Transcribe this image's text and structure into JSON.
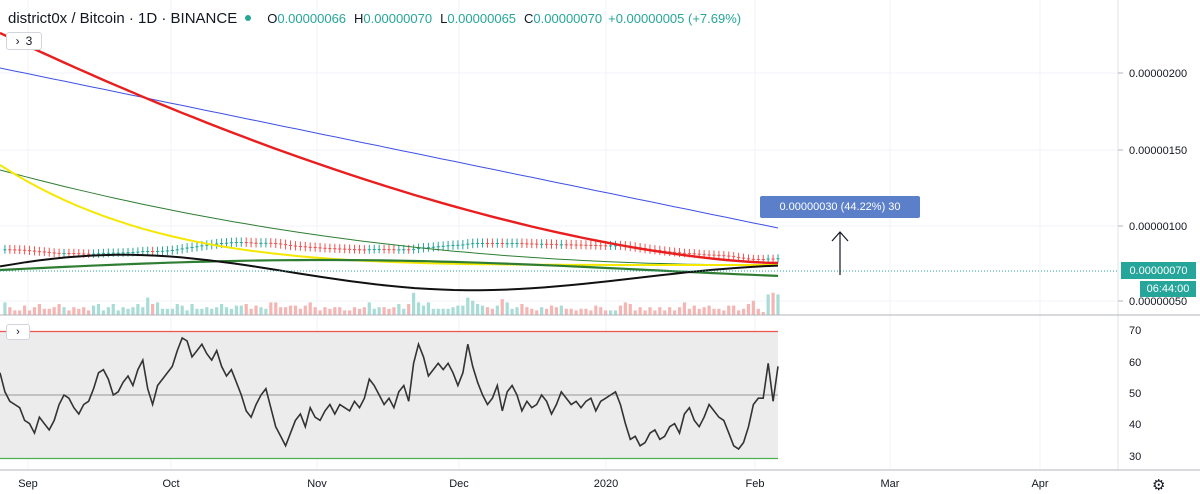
{
  "header": {
    "symbol": "district0x / Bitcoin · 1D · BINANCE",
    "open_key": "O",
    "open": "0.00000066",
    "high_key": "H",
    "high": "0.00000070",
    "low_key": "L",
    "low": "0.00000065",
    "close_key": "C",
    "close": "0.00000070",
    "change": "+0.00000005 (+7.69%)"
  },
  "indicator_toggle": {
    "icon": "chevron-right-icon",
    "count": "3"
  },
  "rsi_toggle": {
    "icon": "chevron-right-icon"
  },
  "price_axis": [
    "0.00000200",
    "0.00000150",
    "0.00000100",
    "0.00000050"
  ],
  "rsi_axis": [
    "70",
    "60",
    "50",
    "40",
    "30"
  ],
  "time_axis": [
    "Sep",
    "Oct",
    "Nov",
    "Dec",
    "2020",
    "Feb",
    "Mar",
    "Apr"
  ],
  "last_price": "0.00000070",
  "countdown": "06:44:00",
  "measure_label": "0.00000030 (44.22%) 30",
  "settings_icon": "gear-icon",
  "colors": {
    "up": "#26a69a",
    "down": "#ef5350",
    "ma_red": "#e91e1e",
    "ma_blue": "#3f51e6",
    "ma_yellow": "#f5e800",
    "ma_green": "#2e7d32",
    "ma_black": "#111111",
    "rsi_line": "#333333",
    "rsi_band": "#ececec",
    "rsi_upper": "#ef5350",
    "rsi_lower": "#4caf50"
  },
  "chart_data": {
    "type": "line",
    "price_ylim": [
      4e-07,
      2.4e-06
    ],
    "rsi_ylim": [
      27,
      73
    ],
    "rsi_levels": [
      70,
      30
    ],
    "rsi": [
      57,
      51,
      48,
      47,
      46,
      42,
      41,
      38,
      43,
      41,
      39,
      42,
      47,
      50,
      49,
      46,
      44,
      47,
      48,
      52,
      57,
      58,
      55,
      50,
      51,
      54,
      56,
      53,
      58,
      61,
      52,
      47,
      53,
      55,
      57,
      59,
      64,
      68,
      67,
      62,
      64,
      66,
      63,
      61,
      64,
      59,
      56,
      58,
      54,
      50,
      45,
      43,
      47,
      50,
      52,
      46,
      40,
      37,
      34,
      38,
      42,
      44,
      40,
      46,
      43,
      42,
      45,
      47,
      44,
      47,
      46,
      45,
      48,
      46,
      49,
      55,
      53,
      50,
      47,
      49,
      46,
      51,
      53,
      48,
      60,
      66,
      62,
      56,
      58,
      60,
      58,
      60,
      57,
      53,
      57,
      66,
      59,
      54,
      50,
      47,
      49,
      53,
      45,
      51,
      53,
      50,
      45,
      48,
      46,
      47,
      50,
      48,
      44,
      47,
      51,
      49,
      47,
      48,
      46,
      48,
      49,
      45,
      48,
      49,
      50,
      51,
      47,
      41,
      36,
      37,
      34,
      35,
      38,
      39,
      36,
      37,
      40,
      41,
      38,
      44,
      46,
      42,
      40,
      43,
      47,
      45,
      43,
      42,
      38,
      34,
      33,
      35,
      40,
      47,
      49,
      49,
      60,
      48,
      59
    ]
  }
}
